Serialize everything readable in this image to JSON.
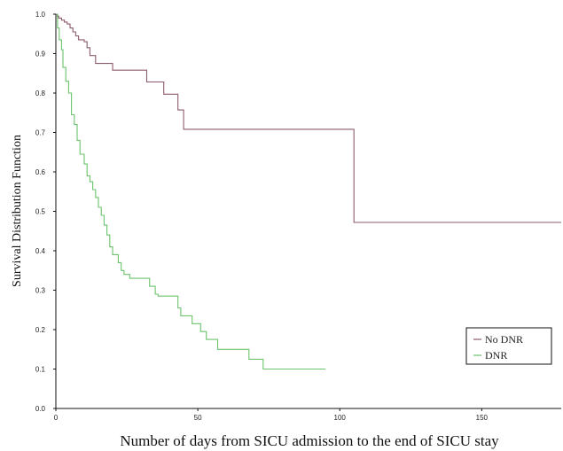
{
  "chart_data": {
    "type": "line",
    "title": "",
    "xlabel": "Number of days from SICU admission to the end of SICU stay",
    "ylabel": "Survival Distribution Function",
    "xlim": [
      0,
      178
    ],
    "ylim": [
      0.0,
      1.0
    ],
    "x_ticks": [
      0,
      50,
      100,
      150
    ],
    "y_ticks": [
      "0.0",
      "0.1",
      "0.2",
      "0.3",
      "0.4",
      "0.5",
      "0.6",
      "0.7",
      "0.8",
      "0.9",
      "1.0"
    ],
    "grid": false,
    "legend_position": "bottom-right",
    "series": [
      {
        "name": "No DNR",
        "color": "#8b5a6e",
        "step": true,
        "points": [
          [
            0,
            1.0
          ],
          [
            0.5,
            0.995
          ],
          [
            1,
            0.99
          ],
          [
            2,
            0.985
          ],
          [
            3,
            0.98
          ],
          [
            4,
            0.975
          ],
          [
            5,
            0.965
          ],
          [
            6,
            0.955
          ],
          [
            7,
            0.945
          ],
          [
            8,
            0.935
          ],
          [
            10,
            0.93
          ],
          [
            11,
            0.915
          ],
          [
            12,
            0.895
          ],
          [
            14,
            0.875
          ],
          [
            20,
            0.858
          ],
          [
            32,
            0.828
          ],
          [
            38,
            0.797
          ],
          [
            43,
            0.757
          ],
          [
            45,
            0.708
          ],
          [
            105,
            0.472
          ],
          [
            178,
            0.472
          ]
        ]
      },
      {
        "name": "DNR",
        "color": "#6cc36c",
        "step": true,
        "points": [
          [
            0,
            1.0
          ],
          [
            0.6,
            0.965
          ],
          [
            1.2,
            0.935
          ],
          [
            2,
            0.91
          ],
          [
            2.5,
            0.865
          ],
          [
            3.5,
            0.83
          ],
          [
            4.5,
            0.8
          ],
          [
            5.5,
            0.745
          ],
          [
            6.5,
            0.72
          ],
          [
            7.5,
            0.68
          ],
          [
            8.5,
            0.645
          ],
          [
            10,
            0.62
          ],
          [
            11,
            0.59
          ],
          [
            12,
            0.575
          ],
          [
            13,
            0.555
          ],
          [
            14,
            0.535
          ],
          [
            15,
            0.51
          ],
          [
            16,
            0.49
          ],
          [
            17,
            0.465
          ],
          [
            18,
            0.44
          ],
          [
            19,
            0.41
          ],
          [
            20,
            0.39
          ],
          [
            22,
            0.37
          ],
          [
            23,
            0.35
          ],
          [
            24,
            0.34
          ],
          [
            26,
            0.33
          ],
          [
            33,
            0.31
          ],
          [
            35,
            0.29
          ],
          [
            36,
            0.285
          ],
          [
            43,
            0.255
          ],
          [
            44,
            0.235
          ],
          [
            48,
            0.215
          ],
          [
            51,
            0.195
          ],
          [
            53,
            0.175
          ],
          [
            57,
            0.15
          ],
          [
            68,
            0.125
          ],
          [
            73,
            0.1
          ],
          [
            95,
            0.1
          ]
        ]
      }
    ]
  }
}
